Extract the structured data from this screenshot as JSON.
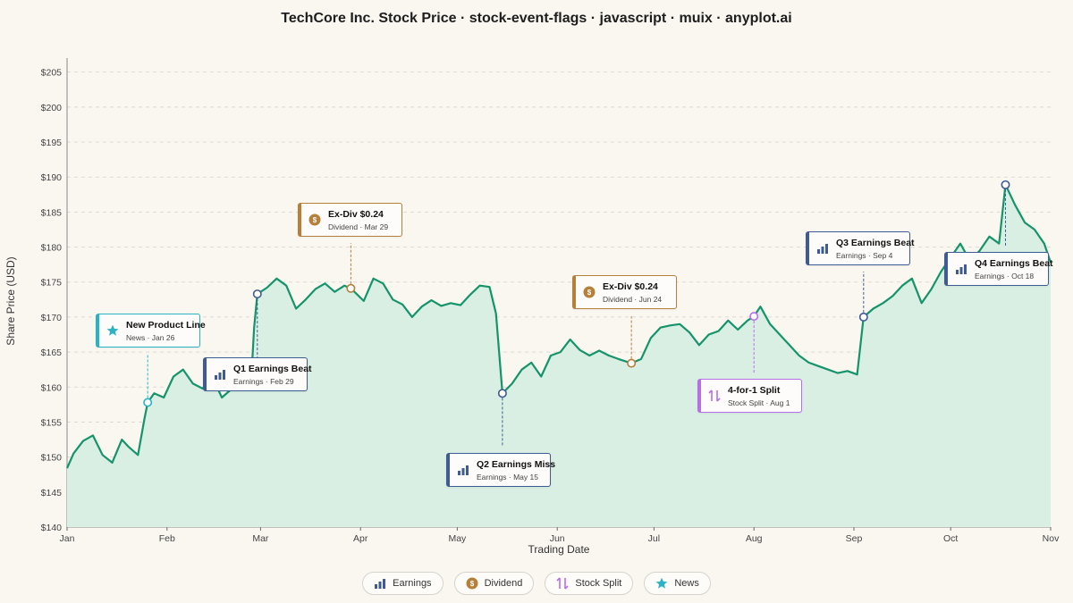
{
  "colors": {
    "line": "#15946b",
    "fill": "#d9efe3",
    "earnings": "#3e5b93",
    "dividend": "#b67f3a",
    "split": "#b76ee6",
    "news": "#29b3c4",
    "grid": "#dcd9d2"
  },
  "chart_data": {
    "type": "line",
    "title": "TechCore Inc. Stock Price · stock-event-flags · javascript · muix · anyplot.ai",
    "xlabel": "Trading Date",
    "ylabel": "Share Price (USD)",
    "ylim": [
      140,
      207
    ],
    "xlim": [
      "2024-01-01",
      "2024-11-01"
    ],
    "grid": "horizontal dashed",
    "ytick_values": [
      140,
      145,
      150,
      155,
      160,
      165,
      170,
      175,
      180,
      185,
      190,
      195,
      200,
      205
    ],
    "ytick_labels": [
      "$140",
      "$145",
      "$150",
      "$155",
      "$160",
      "$165",
      "$170",
      "$175",
      "$180",
      "$185",
      "$190",
      "$195",
      "$200",
      "$205"
    ],
    "xtick_dates": [
      "2024-01-01",
      "2024-02-01",
      "2024-03-01",
      "2024-04-01",
      "2024-05-01",
      "2024-06-01",
      "2024-07-01",
      "2024-08-01",
      "2024-09-01",
      "2024-10-01",
      "2024-11-01"
    ],
    "xtick_labels": [
      "Jan",
      "Feb",
      "Mar",
      "Apr",
      "May",
      "Jun",
      "Jul",
      "Aug",
      "Sep",
      "Oct",
      "Nov"
    ],
    "series": [
      {
        "x": [
          "2024-01-01",
          "2024-01-03",
          "2024-01-06",
          "2024-01-09",
          "2024-01-12",
          "2024-01-15",
          "2024-01-18",
          "2024-01-20",
          "2024-01-23",
          "2024-01-25",
          "2024-01-26",
          "2024-01-28",
          "2024-01-31",
          "2024-02-03",
          "2024-02-06",
          "2024-02-09",
          "2024-02-12",
          "2024-02-15",
          "2024-02-18",
          "2024-02-21",
          "2024-02-24",
          "2024-02-27",
          "2024-02-28",
          "2024-02-29",
          "2024-03-03",
          "2024-03-06",
          "2024-03-09",
          "2024-03-12",
          "2024-03-15",
          "2024-03-18",
          "2024-03-21",
          "2024-03-24",
          "2024-03-27",
          "2024-03-29",
          "2024-04-02",
          "2024-04-05",
          "2024-04-08",
          "2024-04-11",
          "2024-04-14",
          "2024-04-17",
          "2024-04-20",
          "2024-04-23",
          "2024-04-26",
          "2024-04-29",
          "2024-05-02",
          "2024-05-05",
          "2024-05-08",
          "2024-05-11",
          "2024-05-13",
          "2024-05-15",
          "2024-05-18",
          "2024-05-21",
          "2024-05-24",
          "2024-05-27",
          "2024-05-30",
          "2024-06-02",
          "2024-06-05",
          "2024-06-08",
          "2024-06-11",
          "2024-06-14",
          "2024-06-17",
          "2024-06-20",
          "2024-06-24",
          "2024-06-27",
          "2024-06-30",
          "2024-07-03",
          "2024-07-06",
          "2024-07-09",
          "2024-07-12",
          "2024-07-15",
          "2024-07-18",
          "2024-07-21",
          "2024-07-24",
          "2024-07-27",
          "2024-07-30",
          "2024-08-01",
          "2024-08-03",
          "2024-08-06",
          "2024-08-09",
          "2024-08-12",
          "2024-08-15",
          "2024-08-18",
          "2024-08-21",
          "2024-08-24",
          "2024-08-27",
          "2024-08-30",
          "2024-09-02",
          "2024-09-04",
          "2024-09-07",
          "2024-09-10",
          "2024-09-13",
          "2024-09-16",
          "2024-09-19",
          "2024-09-22",
          "2024-09-25",
          "2024-09-28",
          "2024-10-01",
          "2024-10-04",
          "2024-10-07",
          "2024-10-10",
          "2024-10-13",
          "2024-10-16",
          "2024-10-18",
          "2024-10-21",
          "2024-10-24",
          "2024-10-27",
          "2024-10-30",
          "2024-11-01"
        ],
        "y": [
          148.4,
          150.5,
          152.3,
          153.1,
          150.3,
          149.2,
          152.5,
          151.5,
          150.3,
          155.5,
          157.8,
          159.1,
          158.5,
          161.5,
          162.5,
          160.5,
          159.8,
          161.5,
          158.5,
          159.7,
          160.7,
          160.2,
          168.5,
          173.3,
          174.2,
          175.5,
          174.5,
          171.2,
          172.5,
          174.0,
          174.8,
          173.6,
          174.5,
          174.1,
          172.3,
          175.5,
          174.8,
          172.5,
          171.8,
          170.0,
          171.5,
          172.4,
          171.6,
          172.0,
          171.7,
          173.2,
          174.5,
          174.3,
          170.5,
          159.1,
          160.5,
          162.5,
          163.5,
          161.5,
          164.5,
          165.0,
          166.8,
          165.3,
          164.5,
          165.2,
          164.5,
          164.0,
          163.4,
          164.0,
          167.0,
          168.5,
          168.8,
          169.0,
          167.8,
          166.0,
          167.5,
          168.0,
          169.5,
          168.2,
          169.5,
          170.1,
          171.5,
          169.0,
          167.5,
          166.0,
          164.5,
          163.5,
          163.0,
          162.5,
          162.0,
          162.3,
          161.8,
          170.0,
          171.2,
          172.0,
          173.0,
          174.5,
          175.5,
          172.0,
          174.0,
          176.5,
          178.5,
          180.5,
          178.0,
          179.5,
          181.5,
          180.5,
          188.9,
          186.0,
          183.5,
          182.5,
          180.5,
          177.8
        ]
      }
    ],
    "events": [
      {
        "type": "news",
        "title": "New Product Line",
        "sub": "News · Jan 26",
        "date": "2024-01-26",
        "y": 157.8
      },
      {
        "type": "earnings",
        "title": "Q1 Earnings Beat",
        "sub": "Earnings · Feb 29",
        "date": "2024-02-29",
        "y": 173.3
      },
      {
        "type": "dividend",
        "title": "Ex-Div $0.24",
        "sub": "Dividend · Mar 29",
        "date": "2024-03-29",
        "y": 174.1
      },
      {
        "type": "earnings",
        "title": "Q2 Earnings Miss",
        "sub": "Earnings · May 15",
        "date": "2024-05-15",
        "y": 159.1
      },
      {
        "type": "dividend",
        "title": "Ex-Div $0.24",
        "sub": "Dividend · Jun 24",
        "date": "2024-06-24",
        "y": 163.4
      },
      {
        "type": "split",
        "title": "4-for-1 Split",
        "sub": "Stock Split · Aug 1",
        "date": "2024-08-01",
        "y": 170.1
      },
      {
        "type": "earnings",
        "title": "Q3 Earnings Beat",
        "sub": "Earnings · Sep 4",
        "date": "2024-09-04",
        "y": 170.0
      },
      {
        "type": "earnings",
        "title": "Q4 Earnings Beat",
        "sub": "Earnings · Oct 18",
        "date": "2024-10-18",
        "y": 188.9
      }
    ],
    "legend": [
      {
        "type": "earnings",
        "label": "Earnings"
      },
      {
        "type": "dividend",
        "label": "Dividend"
      },
      {
        "type": "split",
        "label": "Stock Split"
      },
      {
        "type": "news",
        "label": "News"
      }
    ]
  }
}
